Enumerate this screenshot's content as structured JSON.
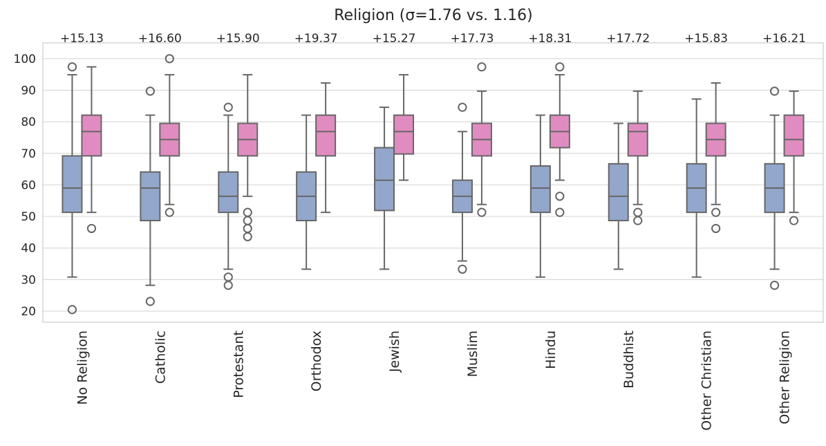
{
  "chart_data": {
    "type": "box",
    "title": "Religion (σ=1.76 vs. 1.16)",
    "xlabel": "",
    "ylabel": "",
    "ylim": [
      16.5,
      105
    ],
    "yticks": [
      20,
      30,
      40,
      50,
      60,
      70,
      80,
      90,
      100
    ],
    "grid": "horizontal",
    "colors": {
      "series_a": "#93a6cb",
      "series_b": "#e08cc0",
      "edge": "#666666",
      "grid": "#d9d9d9",
      "frame": "#cccccc"
    },
    "categories": [
      "No Religion",
      "Catholic",
      "Protestant",
      "Orthodox",
      "Jewish",
      "Muslim",
      "Hindu",
      "Buddhist",
      "Other Christian",
      "Other Religion"
    ],
    "differences": [
      "+15.13",
      "+16.60",
      "+15.90",
      "+19.37",
      "+15.27",
      "+17.73",
      "+18.31",
      "+17.72",
      "+15.83",
      "+16.21"
    ],
    "series": [
      {
        "boxes": [
          {
            "whislo": 30.8,
            "q1": 51.3,
            "med": 59.0,
            "q3": 69.2,
            "whishi": 94.9,
            "fliers": [
              97.4,
              20.5
            ]
          },
          {
            "whislo": 28.2,
            "q1": 48.7,
            "med": 59.0,
            "q3": 64.1,
            "whishi": 82.1,
            "fliers": [
              89.7,
              23.1
            ]
          },
          {
            "whislo": 33.3,
            "q1": 51.3,
            "med": 56.4,
            "q3": 64.1,
            "whishi": 82.1,
            "fliers": [
              84.6,
              30.8,
              28.2
            ]
          },
          {
            "whislo": 33.3,
            "q1": 48.7,
            "med": 56.4,
            "q3": 64.1,
            "whishi": 82.1,
            "fliers": []
          },
          {
            "whislo": 33.3,
            "q1": 51.9,
            "med": 61.5,
            "q3": 71.8,
            "whishi": 84.6,
            "fliers": []
          },
          {
            "whislo": 35.9,
            "q1": 51.3,
            "med": 56.4,
            "q3": 61.5,
            "whishi": 76.9,
            "fliers": [
              84.6,
              33.3
            ]
          },
          {
            "whislo": 30.8,
            "q1": 51.3,
            "med": 59.0,
            "q3": 66.0,
            "whishi": 82.1,
            "fliers": []
          },
          {
            "whislo": 33.3,
            "q1": 48.7,
            "med": 56.4,
            "q3": 66.7,
            "whishi": 79.5,
            "fliers": []
          },
          {
            "whislo": 30.8,
            "q1": 51.3,
            "med": 59.0,
            "q3": 66.7,
            "whishi": 87.2,
            "fliers": []
          },
          {
            "whislo": 33.3,
            "q1": 51.3,
            "med": 59.0,
            "q3": 66.7,
            "whishi": 82.1,
            "fliers": [
              89.7,
              28.2
            ]
          }
        ]
      },
      {
        "boxes": [
          {
            "whislo": 51.3,
            "q1": 69.2,
            "med": 76.9,
            "q3": 82.1,
            "whishi": 97.4,
            "fliers": [
              46.2
            ]
          },
          {
            "whislo": 53.8,
            "q1": 69.2,
            "med": 74.4,
            "q3": 79.5,
            "whishi": 94.9,
            "fliers": [
              100.0,
              51.3
            ]
          },
          {
            "whislo": 56.4,
            "q1": 69.2,
            "med": 74.4,
            "q3": 79.5,
            "whishi": 94.9,
            "fliers": [
              51.3,
              48.7,
              46.2,
              43.6
            ]
          },
          {
            "whislo": 51.3,
            "q1": 69.2,
            "med": 76.9,
            "q3": 82.1,
            "whishi": 92.3,
            "fliers": []
          },
          {
            "whislo": 61.5,
            "q1": 69.8,
            "med": 76.9,
            "q3": 82.1,
            "whishi": 94.9,
            "fliers": []
          },
          {
            "whislo": 53.8,
            "q1": 69.2,
            "med": 74.4,
            "q3": 79.5,
            "whishi": 89.7,
            "fliers": [
              97.4,
              51.3
            ]
          },
          {
            "whislo": 61.5,
            "q1": 71.8,
            "med": 76.9,
            "q3": 82.1,
            "whishi": 94.9,
            "fliers": [
              97.4,
              56.4,
              51.3
            ]
          },
          {
            "whislo": 53.8,
            "q1": 69.2,
            "med": 76.9,
            "q3": 79.5,
            "whishi": 89.7,
            "fliers": [
              51.3,
              48.7
            ]
          },
          {
            "whislo": 53.8,
            "q1": 69.2,
            "med": 74.4,
            "q3": 79.5,
            "whishi": 92.3,
            "fliers": [
              51.3,
              46.2
            ]
          },
          {
            "whislo": 51.3,
            "q1": 69.2,
            "med": 74.4,
            "q3": 82.1,
            "whishi": 89.7,
            "fliers": [
              48.7
            ]
          }
        ]
      }
    ]
  }
}
